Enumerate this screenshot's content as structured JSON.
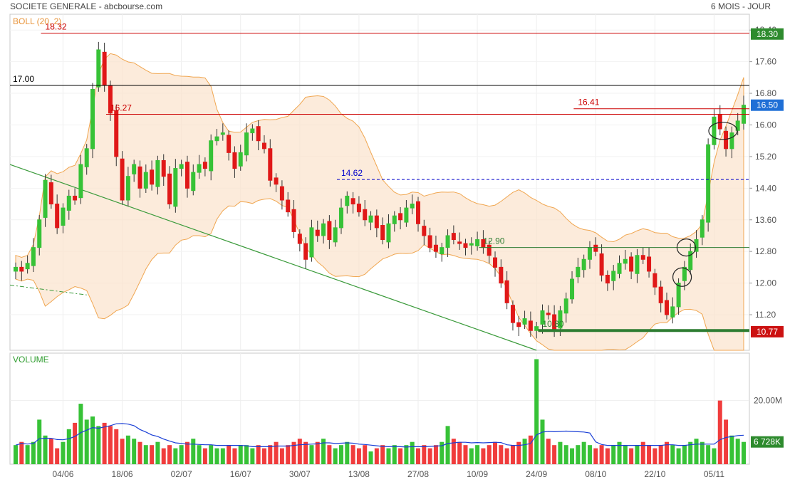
{
  "header": {
    "title": "SOCIETE GENERALE - abcbourse.com",
    "period": "6 MOIS - JOUR"
  },
  "chart_data": [
    {
      "type": "candlestick",
      "indicator_label": "BOLL (20, 2)",
      "y_ticks": [
        "18.40",
        "17.60",
        "16.80",
        "16.00",
        "15.20",
        "14.40",
        "13.60",
        "12.80",
        "12.00",
        "11.20"
      ],
      "ylim": [
        10.3,
        18.8
      ],
      "x_ticks": [
        {
          "label": "04/06",
          "index": 8
        },
        {
          "label": "18/06",
          "index": 18
        },
        {
          "label": "02/07",
          "index": 28
        },
        {
          "label": "16/07",
          "index": 38
        },
        {
          "label": "30/07",
          "index": 48
        },
        {
          "label": "13/08",
          "index": 58
        },
        {
          "label": "27/08",
          "index": 68
        },
        {
          "label": "10/09",
          "index": 78
        },
        {
          "label": "24/09",
          "index": 88
        },
        {
          "label": "08/10",
          "index": 98
        },
        {
          "label": "22/10",
          "index": 108
        },
        {
          "label": "05/11",
          "index": 118
        }
      ],
      "levels": [
        {
          "value": 18.32,
          "label": "18.32",
          "color": "#cc0000"
        },
        {
          "value": 17.0,
          "label": "17.00",
          "color": "#000000"
        },
        {
          "value": 16.27,
          "label": "16.27",
          "color": "#cc0000"
        },
        {
          "value": 16.41,
          "label": "16.41",
          "color": "#cc0000"
        },
        {
          "value": 14.62,
          "label": "14.62",
          "color": "#0000cc",
          "dashed": true
        },
        {
          "value": 12.9,
          "label": "12.90",
          "color": "#2e7d32"
        },
        {
          "value": 10.8,
          "label": "10.80",
          "color": "#2e7d32"
        }
      ],
      "price_badges": [
        {
          "value": 18.3,
          "label": "18.30",
          "color": "#2e8b2e"
        },
        {
          "value": 16.5,
          "label": "16.50",
          "color": "#1f6fd6"
        },
        {
          "value": 10.77,
          "label": "10.77",
          "color": "#cc1111"
        }
      ],
      "candles_close": [
        12.4,
        12.3,
        12.5,
        12.9,
        13.6,
        14.6,
        14.0,
        13.4,
        13.9,
        14.2,
        14.1,
        15.0,
        15.4,
        16.9,
        17.9,
        17.0,
        16.3,
        15.2,
        14.1,
        14.7,
        15.0,
        14.4,
        14.8,
        14.5,
        15.1,
        14.7,
        14.0,
        14.9,
        15.0,
        14.4,
        14.8,
        15.0,
        14.9,
        15.6,
        15.7,
        15.8,
        15.3,
        14.9,
        15.3,
        15.8,
        15.9,
        15.6,
        15.4,
        14.6,
        14.5,
        14.1,
        13.8,
        13.3,
        13.0,
        12.6,
        13.4,
        13.2,
        13.5,
        13.1,
        13.4,
        13.9,
        14.2,
        14.0,
        13.8,
        13.6,
        13.7,
        13.4,
        13.1,
        13.5,
        13.7,
        13.6,
        13.9,
        14.0,
        13.5,
        13.2,
        12.9,
        12.8,
        12.9,
        13.2,
        13.1,
        13.0,
        12.9,
        13.0,
        13.1,
        12.9,
        12.7,
        12.4,
        12.0,
        11.5,
        11.0,
        10.9,
        11.1,
        10.8,
        10.9,
        11.3,
        11.2,
        10.8,
        11.3,
        11.6,
        12.1,
        12.4,
        12.6,
        12.9,
        12.8,
        12.2,
        12.0,
        12.3,
        12.5,
        12.6,
        12.3,
        12.7,
        12.6,
        12.3,
        11.9,
        11.5,
        11.2,
        11.4,
        12.0,
        12.4,
        12.8,
        13.1,
        13.6,
        15.5,
        16.2,
        15.9,
        15.4,
        15.8,
        16.1,
        16.5
      ],
      "volume": {
        "label": "VOLUME",
        "y_tick": "20.00M",
        "ymax": 34,
        "last_label": "6 728K",
        "bars": [
          6,
          7,
          6,
          7,
          14,
          9,
          8,
          5,
          7,
          11,
          13,
          19,
          14,
          15,
          12,
          13,
          12,
          11,
          8,
          9,
          8,
          7,
          6,
          6,
          7,
          5,
          6,
          5,
          6,
          7,
          8,
          6,
          5,
          6,
          5,
          5,
          6,
          5,
          6,
          6,
          5,
          6,
          5,
          6,
          7,
          5,
          6,
          7,
          8,
          7,
          6,
          7,
          8,
          6,
          5,
          6,
          7,
          6,
          5,
          6,
          4,
          5,
          6,
          5,
          6,
          5,
          6,
          7,
          5,
          6,
          5,
          6,
          7,
          12,
          8,
          7,
          6,
          5,
          6,
          5,
          6,
          7,
          6,
          5,
          6,
          7,
          8,
          9,
          33,
          14,
          8,
          6,
          7,
          6,
          5,
          6,
          7,
          6,
          5,
          6,
          5,
          6,
          7,
          6,
          5,
          6,
          7,
          6,
          5,
          6,
          7,
          6,
          5,
          6,
          7,
          8,
          7,
          6,
          5,
          20,
          14,
          9,
          8,
          7
        ]
      }
    }
  ]
}
